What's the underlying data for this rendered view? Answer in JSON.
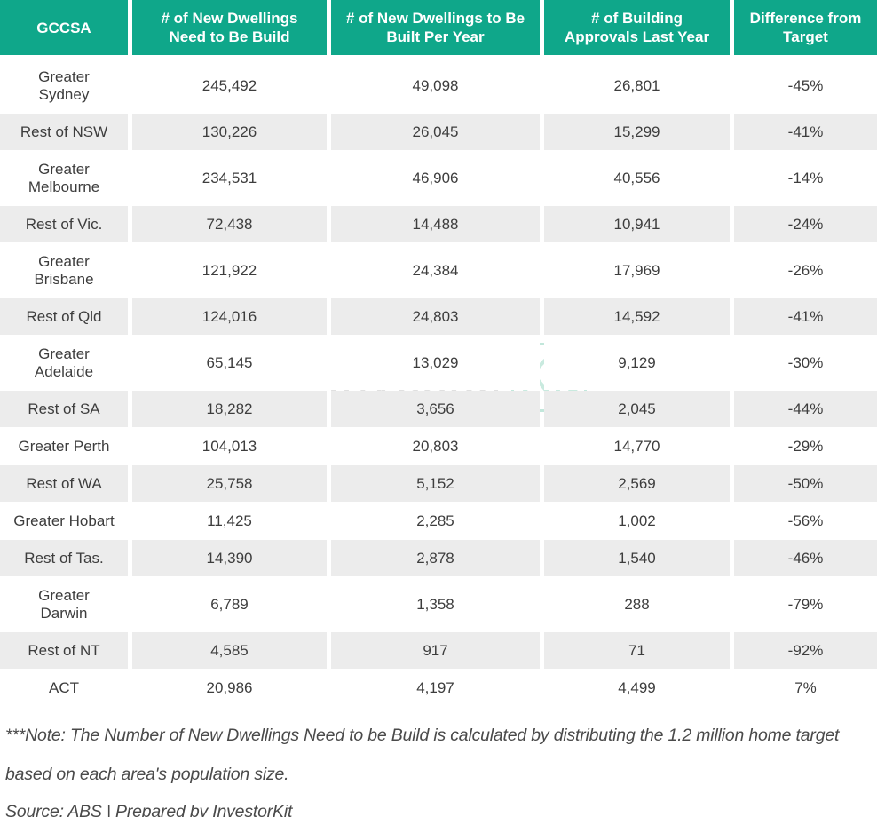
{
  "table": {
    "header": [
      "GCCSA",
      "# of New Dwellings Need to Be Build",
      "# of New Dwellings to Be Built Per Year",
      "# of Building Approvals Last Year",
      "Difference from Target"
    ],
    "rows": [
      {
        "gccsa": "Greater\nSydney",
        "values": [
          "245,492",
          "49,098",
          "26,801",
          "-45%"
        ]
      },
      {
        "gccsa": "Rest of NSW",
        "values": [
          "130,226",
          "26,045",
          "15,299",
          "-41%"
        ]
      },
      {
        "gccsa": "Greater\nMelbourne",
        "values": [
          "234,531",
          "46,906",
          "40,556",
          "-14%"
        ]
      },
      {
        "gccsa": "Rest of Vic.",
        "values": [
          "72,438",
          "14,488",
          "10,941",
          "-24%"
        ]
      },
      {
        "gccsa": "Greater\nBrisbane",
        "values": [
          "121,922",
          "24,384",
          "17,969",
          "-26%"
        ]
      },
      {
        "gccsa": "Rest of Qld",
        "values": [
          "124,016",
          "24,803",
          "14,592",
          "-41%"
        ]
      },
      {
        "gccsa": "Greater\nAdelaide",
        "values": [
          "65,145",
          "13,029",
          "9,129",
          "-30%"
        ]
      },
      {
        "gccsa": "Rest of SA",
        "values": [
          "18,282",
          "3,656",
          "2,045",
          "-44%"
        ]
      },
      {
        "gccsa": "Greater Perth",
        "values": [
          "104,013",
          "20,803",
          "14,770",
          "-29%"
        ]
      },
      {
        "gccsa": "Rest of WA",
        "values": [
          "25,758",
          "5,152",
          "2,569",
          "-50%"
        ]
      },
      {
        "gccsa": "Greater Hobart",
        "values": [
          "11,425",
          "2,285",
          "1,002",
          "-56%"
        ]
      },
      {
        "gccsa": "Rest of Tas.",
        "values": [
          "14,390",
          "2,878",
          "1,540",
          "-46%"
        ]
      },
      {
        "gccsa": "Greater\nDarwin",
        "values": [
          "6,789",
          "1,358",
          "288",
          "-79%"
        ]
      },
      {
        "gccsa": "Rest of NT",
        "values": [
          "4,585",
          "917",
          "71",
          "-92%"
        ]
      },
      {
        "gccsa": "ACT",
        "values": [
          "20,986",
          "4,197",
          "4,499",
          "7%"
        ]
      }
    ]
  },
  "watermark": {
    "text_primary": "Investor",
    "text_secondary": "Kit"
  },
  "footer": {
    "note": "***Note: The Number of New Dwellings Need to be Build is calculated by distributing the 1.2 million home target based on each area's population size.",
    "source": "Source: ABS | Prepared by InvestorKit"
  },
  "colors": {
    "header_bg": "#0FA78A",
    "header_text": "#FFFFFF",
    "row_alt_bg": "#ECECEC",
    "cell_text": "#3D3D3D",
    "watermark_gray": "#E0E0E0",
    "watermark_mint": "#C9EADF"
  }
}
